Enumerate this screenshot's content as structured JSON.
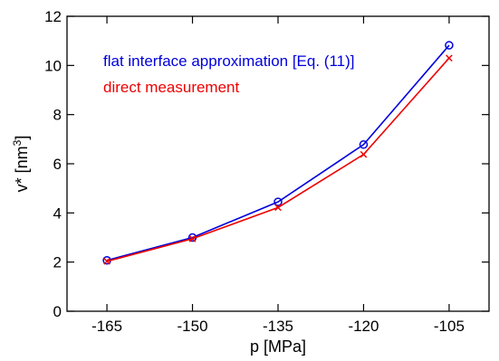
{
  "chart_data": {
    "type": "line",
    "xlabel": "p [MPa]",
    "ylabel_main": "v* [nm",
    "ylabel_sup": "3",
    "ylabel_close": "]",
    "x": [
      -165,
      -150,
      -135,
      -120,
      -105
    ],
    "xlim": [
      -172,
      -98
    ],
    "ylim": [
      0,
      12
    ],
    "xticks": [
      -165,
      -150,
      -135,
      -120,
      -105
    ],
    "xtick_labels": [
      "-165",
      "-150",
      "-135",
      "-120",
      "-105"
    ],
    "yticks": [
      0,
      2,
      4,
      6,
      8,
      10,
      12
    ],
    "ytick_labels": [
      "0",
      "2",
      "4",
      "6",
      "8",
      "10",
      "12"
    ],
    "grid": false,
    "legend_position": "top-left",
    "series": [
      {
        "name": "flat interface approximation [Eq. (11)]",
        "color": "#0000dd",
        "marker": "circle",
        "values": [
          2.07,
          3.0,
          4.45,
          6.78,
          10.82
        ]
      },
      {
        "name": "direct measurement",
        "color": "#ee0000",
        "marker": "cross",
        "values": [
          2.03,
          2.95,
          4.22,
          6.38,
          10.3
        ]
      }
    ]
  }
}
